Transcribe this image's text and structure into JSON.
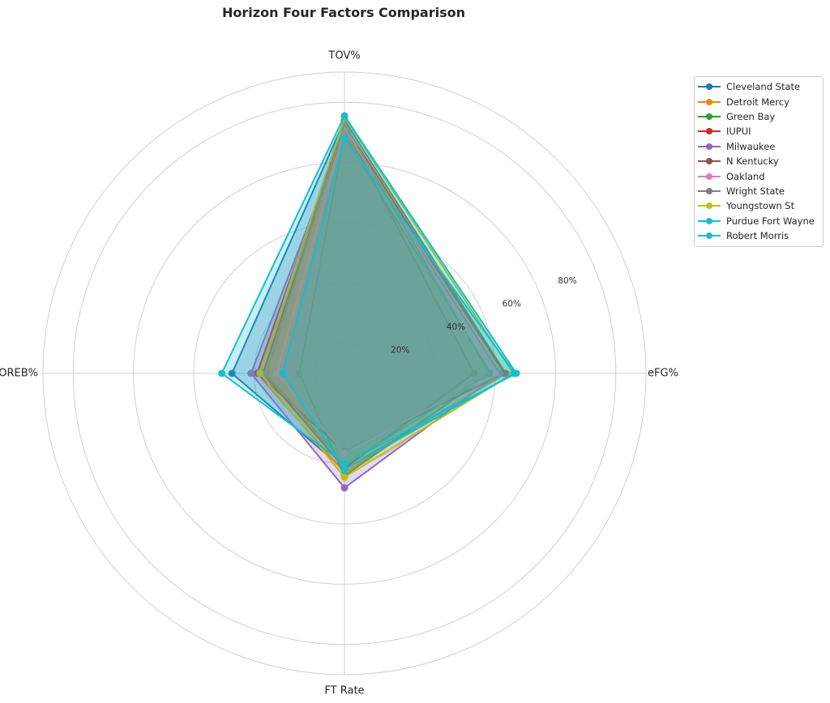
{
  "chart_data": {
    "type": "radar",
    "title": "Horizon Four Factors Comparison",
    "axes": [
      "eFG%",
      "TOV%",
      "OREB%",
      "FT Rate"
    ],
    "radial_ticks": [
      "20%",
      "40%",
      "60%",
      "80%"
    ],
    "radial_tick_values": [
      20,
      40,
      60,
      80
    ],
    "r_max": 100,
    "grid": true,
    "legend_position": "upper-right outside",
    "series": [
      {
        "name": "Cleveland State",
        "color": "#1f77b4",
        "values": [
          53.5,
          84.0,
          37.3,
          32.0
        ]
      },
      {
        "name": "Detroit Mercy",
        "color": "#ff7f0e",
        "values": [
          53.0,
          81.0,
          29.0,
          33.0
        ]
      },
      {
        "name": "Green Bay",
        "color": "#2ca02c",
        "values": [
          48.5,
          79.0,
          15.0,
          34.0
        ]
      },
      {
        "name": "IUPUI",
        "color": "#d62728",
        "values": [
          53.0,
          82.5,
          29.0,
          26.0
        ]
      },
      {
        "name": "Milwaukee",
        "color": "#9467bd",
        "values": [
          51.5,
          80.5,
          31.0,
          38.0
        ]
      },
      {
        "name": "N Kentucky",
        "color": "#8c564b",
        "values": [
          43.0,
          82.0,
          27.0,
          31.5
        ]
      },
      {
        "name": "Oakland",
        "color": "#e377c2",
        "values": [
          50.0,
          81.5,
          22.5,
          26.5
        ]
      },
      {
        "name": "Wright State",
        "color": "#7f7f7f",
        "values": [
          48.0,
          83.0,
          26.0,
          30.5
        ]
      },
      {
        "name": "Youngstown St",
        "color": "#bcbd22",
        "values": [
          56.0,
          85.0,
          28.0,
          34.5
        ]
      },
      {
        "name": "Purdue Fort Wayne",
        "color": "#17becf",
        "values": [
          56.5,
          78.0,
          20.5,
          32.0
        ]
      },
      {
        "name": "Robert Morris",
        "color": "#17becf",
        "values": [
          57.0,
          85.5,
          40.7,
          30.0
        ]
      }
    ]
  }
}
